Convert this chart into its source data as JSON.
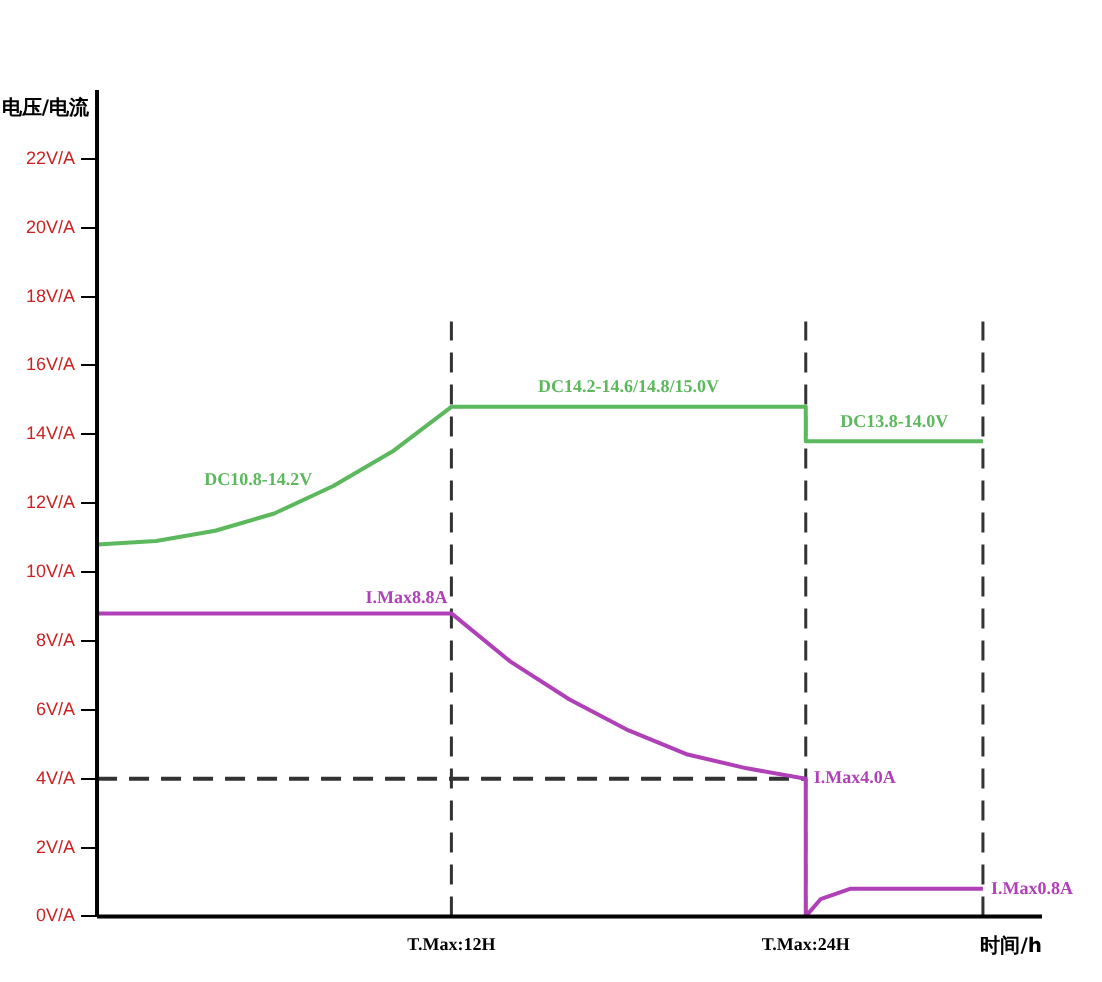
{
  "chart_data": {
    "type": "line",
    "xlabel": "时间/h",
    "ylabel": "电压/电流",
    "xlim": [
      0,
      32
    ],
    "xticks": [
      {
        "value": 12,
        "label": "T.Max:12H"
      },
      {
        "value": 24,
        "label": "T.Max:24H"
      }
    ],
    "ylim": [
      0,
      24
    ],
    "yticks": [
      {
        "value": 0,
        "label": "0V/A"
      },
      {
        "value": 2,
        "label": "2V/A"
      },
      {
        "value": 4,
        "label": "4V/A"
      },
      {
        "value": 6,
        "label": "6V/A"
      },
      {
        "value": 8,
        "label": "8V/A"
      },
      {
        "value": 10,
        "label": "10V/A"
      },
      {
        "value": 12,
        "label": "12V/A"
      },
      {
        "value": 14,
        "label": "14V/A"
      },
      {
        "value": 16,
        "label": "16V/A"
      },
      {
        "value": 18,
        "label": "18V/A"
      },
      {
        "value": 20,
        "label": "20V/A"
      },
      {
        "value": 22,
        "label": "22V/A"
      }
    ],
    "grid": false,
    "legend": false,
    "marker": "none",
    "series": [
      {
        "color": "#5cb85c",
        "x": [
          0,
          2,
          4,
          6,
          8,
          10,
          12,
          18,
          24,
          24,
          27,
          30
        ],
        "values": [
          10.8,
          10.9,
          11.2,
          11.7,
          12.5,
          13.5,
          14.8,
          14.8,
          14.8,
          13.8,
          13.8,
          13.8
        ]
      },
      {
        "color": "#b040b8",
        "x": [
          0,
          12,
          14,
          16,
          18,
          20,
          22,
          24,
          24,
          24.5,
          25.5,
          30
        ],
        "values": [
          8.8,
          8.8,
          7.4,
          6.3,
          5.4,
          4.7,
          4.3,
          4.0,
          0,
          0.5,
          0.8,
          0.8
        ]
      },
      {
        "color": "#333333",
        "line_style": "dashed",
        "x": [
          0,
          24
        ],
        "values": [
          4,
          4
        ]
      }
    ],
    "ref_lines": [
      {
        "axis": "x",
        "value": 12,
        "label": null,
        "color": "#333333",
        "line_style": "dashed"
      },
      {
        "axis": "x",
        "value": 24,
        "label": null,
        "color": "#333333",
        "line_style": "dashed"
      },
      {
        "axis": "x",
        "value": 30,
        "label": null,
        "color": "#333333",
        "line_style": "dashed"
      }
    ],
    "annotations": [
      {
        "text": "DC10.8-14.2V",
        "x": 6,
        "y": 11.7
      },
      {
        "text": "DC14.2-14.6/14.8/15.0V",
        "x": 18,
        "y": 14.8
      },
      {
        "text": "DC13.8-14.0V",
        "x": 27,
        "y": 13.8
      },
      {
        "text": "I.Max8.8A",
        "x": 12,
        "y": 8.8
      },
      {
        "text": "I.Max4.0A",
        "x": 24,
        "y": 4.0
      },
      {
        "text": "I.Max0.8A",
        "x": 30,
        "y": 0.8
      }
    ]
  }
}
